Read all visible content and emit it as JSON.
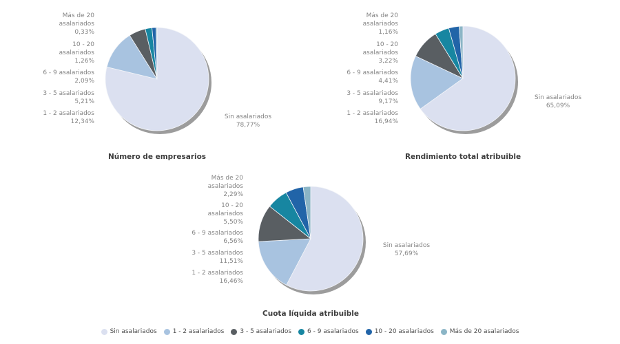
{
  "colors": {
    "background": "#ffffff",
    "shadow": "#9c9c9c",
    "label_text": "#848484",
    "title_text": "#3d3d3d",
    "legend_text": "#4d4d4d"
  },
  "legend": {
    "items": [
      {
        "label": "Sin asalariados",
        "color": "#dbe0f0"
      },
      {
        "label": "1 - 2 asalariados",
        "color": "#a8c3e0"
      },
      {
        "label": "3 - 5 asalariados",
        "color": "#595e62"
      },
      {
        "label": "6 - 9 asalariados",
        "color": "#1786a1"
      },
      {
        "label": "10 - 20 asalariados",
        "color": "#2164a8"
      },
      {
        "label": "Más de 20 asalariados",
        "color": "#8bb5c6"
      }
    ]
  },
  "chart_data": [
    {
      "type": "pie",
      "title": "Número de empresarios",
      "slices": [
        {
          "label": "Sin asalariados",
          "label_lines": [
            "Sin asalariados"
          ],
          "value": 78.77,
          "display": "78,77%",
          "color": "#dbe0f0"
        },
        {
          "label": "1 - 2 asalariados",
          "label_lines": [
            "1 - 2 asalariados"
          ],
          "value": 12.34,
          "display": "12,34%",
          "color": "#a8c3e0"
        },
        {
          "label": "3 - 5 asalariados",
          "label_lines": [
            "3 - 5 asalariados"
          ],
          "value": 5.21,
          "display": "5,21%",
          "color": "#595e62"
        },
        {
          "label": "6 - 9 asalariados",
          "label_lines": [
            "6 - 9 asalariados"
          ],
          "value": 2.09,
          "display": "2,09%",
          "color": "#1786a1"
        },
        {
          "label": "10 - 20 asalariados",
          "label_lines": [
            "10 - 20",
            "asalariados"
          ],
          "value": 1.26,
          "display": "1,26%",
          "color": "#2164a8"
        },
        {
          "label": "Más de 20 asalariados",
          "label_lines": [
            "Más de 20",
            "asalariados"
          ],
          "value": 0.33,
          "display": "0,33%",
          "color": "#8bb5c6"
        }
      ]
    },
    {
      "type": "pie",
      "title": "Rendimiento total atribuible",
      "slices": [
        {
          "label": "Sin asalariados",
          "label_lines": [
            "Sin asalariados"
          ],
          "value": 65.09,
          "display": "65,09%",
          "color": "#dbe0f0"
        },
        {
          "label": "1 - 2 asalariados",
          "label_lines": [
            "1 - 2 asalariados"
          ],
          "value": 16.94,
          "display": "16,94%",
          "color": "#a8c3e0"
        },
        {
          "label": "3 - 5 asalariados",
          "label_lines": [
            "3 - 5 asalariados"
          ],
          "value": 9.17,
          "display": "9,17%",
          "color": "#595e62"
        },
        {
          "label": "6 - 9 asalariados",
          "label_lines": [
            "6 - 9 asalariados"
          ],
          "value": 4.41,
          "display": "4,41%",
          "color": "#1786a1"
        },
        {
          "label": "10 - 20 asalariados",
          "label_lines": [
            "10 - 20",
            "asalariados"
          ],
          "value": 3.22,
          "display": "3,22%",
          "color": "#2164a8"
        },
        {
          "label": "Más de 20 asalariados",
          "label_lines": [
            "Más de 20",
            "asalariados"
          ],
          "value": 1.16,
          "display": "1,16%",
          "color": "#8bb5c6"
        }
      ]
    },
    {
      "type": "pie",
      "title": "Cuota líquida atribuible",
      "slices": [
        {
          "label": "Sin asalariados",
          "label_lines": [
            "Sin asalariados"
          ],
          "value": 57.69,
          "display": "57,69%",
          "color": "#dbe0f0"
        },
        {
          "label": "1 - 2 asalariados",
          "label_lines": [
            "1 - 2 asalariados"
          ],
          "value": 16.46,
          "display": "16,46%",
          "color": "#a8c3e0"
        },
        {
          "label": "3 - 5 asalariados",
          "label_lines": [
            "3 - 5 asalariados"
          ],
          "value": 11.51,
          "display": "11,51%",
          "color": "#595e62"
        },
        {
          "label": "6 - 9 asalariados",
          "label_lines": [
            "6 - 9 asalariados"
          ],
          "value": 6.56,
          "display": "6,56%",
          "color": "#1786a1"
        },
        {
          "label": "10 - 20 asalariados",
          "label_lines": [
            "10 - 20",
            "asalariados"
          ],
          "value": 5.5,
          "display": "5,50%",
          "color": "#2164a8"
        },
        {
          "label": "Más de 20 asalariados",
          "label_lines": [
            "Más de 20",
            "asalariados"
          ],
          "value": 2.29,
          "display": "2,29%",
          "color": "#8bb5c6"
        }
      ]
    }
  ]
}
